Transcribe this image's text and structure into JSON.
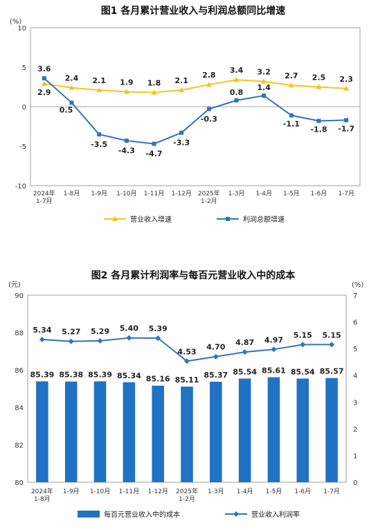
{
  "chart_data": [
    {
      "type": "line",
      "title": "图1  各月累计营业收入与利润总额同比增速",
      "yunit": "(%)",
      "ylim": [
        -10,
        10
      ],
      "yticks": [
        10,
        5,
        0,
        -5,
        -10
      ],
      "categories": [
        [
          "2024年",
          "1-7月"
        ],
        [
          "1-8月"
        ],
        [
          "1-9月"
        ],
        [
          "1-10月"
        ],
        [
          "1-11月"
        ],
        [
          "1-12月"
        ],
        [
          "2025年",
          "1-2月"
        ],
        [
          "1-3月"
        ],
        [
          "1-4月"
        ],
        [
          "1-5月"
        ],
        [
          "1-6月"
        ],
        [
          "1-7月"
        ]
      ],
      "series": [
        {
          "name": "营业收入增速",
          "color": "#F5C518",
          "marker": "triangle",
          "values": [
            2.9,
            2.4,
            2.1,
            1.9,
            1.8,
            2.1,
            2.8,
            3.4,
            3.2,
            2.7,
            2.5,
            2.3
          ],
          "labels": [
            "2.9",
            "2.4",
            "2.1",
            "1.9",
            "1.8",
            "2.1",
            "2.8",
            "3.4",
            "3.2",
            "2.7",
            "2.5",
            "2.3"
          ]
        },
        {
          "name": "利润总额增速",
          "color": "#2E75B6",
          "marker": "square",
          "values": [
            3.6,
            0.5,
            -3.5,
            -4.3,
            -4.7,
            -3.3,
            -0.3,
            0.8,
            1.4,
            -1.1,
            -1.8,
            -1.7
          ],
          "labels": [
            "3.6",
            "0.5",
            "-3.5",
            "-4.3",
            "-4.7",
            "-3.3",
            "-0.3",
            "0.8",
            "1.4",
            "-1.1",
            "-1.8",
            "-1.7"
          ]
        }
      ]
    },
    {
      "type": "bar",
      "title": "图2  各月累计利润率与每百元营业收入中的成本",
      "yunit_left": "(元)",
      "yunit_right": "(%)",
      "ylim_left": [
        80,
        90
      ],
      "yticks_left": [
        90,
        88,
        86,
        84,
        82,
        80
      ],
      "ylim_right": [
        0,
        7
      ],
      "yticks_right": [
        7,
        6,
        5,
        4,
        3,
        2,
        1,
        0
      ],
      "categories": [
        [
          "2024年",
          "1-8月"
        ],
        [
          "1-9月"
        ],
        [
          "1-10月"
        ],
        [
          "1-11月"
        ],
        [
          "1-12月"
        ],
        [
          "2025年",
          "1-2月"
        ],
        [
          "1-3月"
        ],
        [
          "1-4月"
        ],
        [
          "1-5月"
        ],
        [
          "1-6月"
        ],
        [
          "1-7月"
        ]
      ],
      "bar_series": {
        "name": "每百元营业收入中的成本",
        "color": "#1F72C4",
        "values": [
          85.39,
          85.38,
          85.39,
          85.34,
          85.16,
          85.11,
          85.37,
          85.54,
          85.61,
          85.54,
          85.57
        ],
        "labels": [
          "85.39",
          "85.38",
          "85.39",
          "85.34",
          "85.16",
          "85.11",
          "85.37",
          "85.54",
          "85.61",
          "85.54",
          "85.57"
        ]
      },
      "line_series": {
        "name": "营业收入利润率",
        "color": "#2E75B6",
        "values": [
          5.34,
          5.27,
          5.29,
          5.4,
          5.39,
          4.53,
          4.7,
          4.87,
          4.97,
          5.15,
          5.15
        ],
        "labels": [
          "5.34",
          "5.27",
          "5.29",
          "5.40",
          "5.39",
          "4.53",
          "4.70",
          "4.87",
          "4.97",
          "5.15",
          "5.15"
        ]
      }
    }
  ]
}
